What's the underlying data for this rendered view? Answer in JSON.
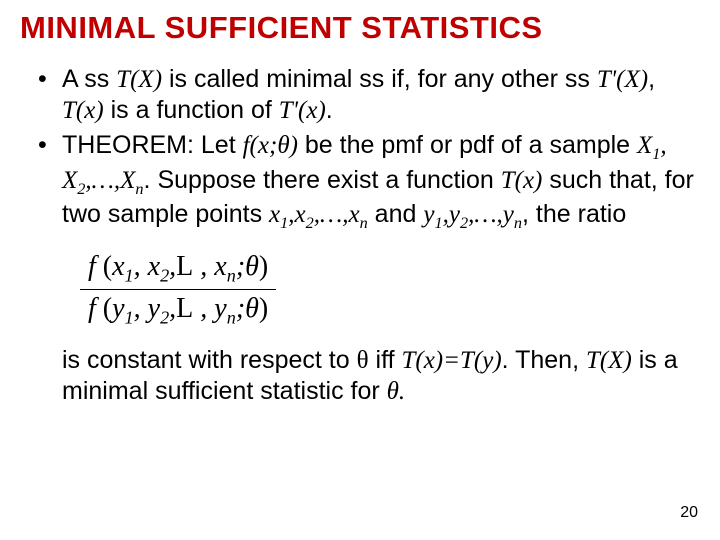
{
  "title_color": "#c00000",
  "title": "MINIMAL SUFFICIENT STATISTICS",
  "bullet1": {
    "pre": "A ss ",
    "tx1": "T(X)",
    "mid1": " is called minimal ss if, for any other ss ",
    "tp1": "T'(X)",
    "comma": ", ",
    "tx2": "T(x)",
    "mid2": " is a function of ",
    "tp2": "T'(x)",
    "end": "."
  },
  "bullet2": {
    "theorem": "THEOREM:",
    "let": " Let ",
    "fx": "f(x;",
    "theta1": "θ",
    "fxend": ")",
    "bepmf": " be the pmf or pdf of a sample ",
    "x1": "X",
    "s1": "1",
    "c1": ", ",
    "x2": "X",
    "s2": "2",
    "c2": ",…,",
    "xn": "X",
    "sn": "n",
    "suppose": ". Suppose there exist a function ",
    "tx": "T(x)",
    "such": " such that, for two sample points ",
    "lx1": "x",
    "ls1": "1",
    "lc1": ",",
    "lx2": "x",
    "ls2": "2",
    "lc2": ",…,",
    "lxn": "x",
    "lsn": "n",
    "and": " and ",
    "ly1": "y",
    "my1": "1",
    "mc1": ",",
    "ly2": "y",
    "my2": "2",
    "mc2": ",…,",
    "lyn": "y",
    "myn": "n",
    "ratio": ", the ratio"
  },
  "frac": {
    "num_f": "f ",
    "num_open": "(",
    "num_x1": "x",
    "num_s1": "1",
    "num_c1": ", ",
    "num_x2": "x",
    "num_s2": "2",
    "num_c2": ",",
    "num_l": "L",
    "num_c3": " , ",
    "num_xn": "x",
    "num_sn": "n",
    "num_semi": ";",
    "num_theta": "θ",
    "num_close": ")",
    "den_f": "f ",
    "den_open": "(",
    "den_y1": "y",
    "den_s1": "1",
    "den_c1": ", ",
    "den_y2": "y",
    "den_s2": "2",
    "den_c2": ",",
    "den_l": "L",
    "den_c3": " , ",
    "den_yn": "y",
    "den_sn": "n",
    "den_semi": ";",
    "den_theta": "θ",
    "den_close": ")"
  },
  "after": {
    "isconst": "is constant with respect to ",
    "theta2": "θ",
    "iff": " iff ",
    "txeq": "T(x)=T(y)",
    "then": ". Then, ",
    "tx3": "T(X)",
    "isa": " is a minimal sufficient statistic for ",
    "theta3": "θ",
    "end": "."
  },
  "pagenum": "20"
}
